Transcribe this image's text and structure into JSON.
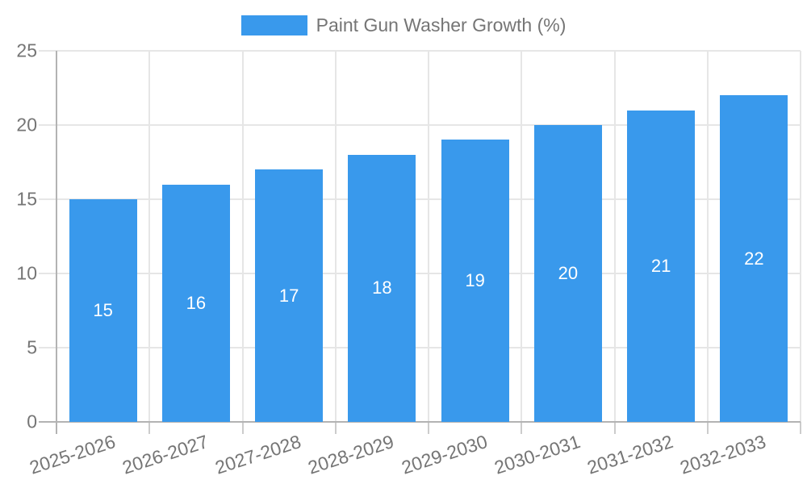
{
  "legend": {
    "label": "Paint Gun Washer Growth (%)"
  },
  "colors": {
    "bar": "#3999EC",
    "bar_label": "#ffffff",
    "text": "#757575",
    "grid": "#e6e6e6",
    "axis": "#b3b3b3",
    "tick": "#cccccc"
  },
  "chart_data": {
    "type": "bar",
    "title": "Paint Gun Washer Growth (%)",
    "categories": [
      "2025-2026",
      "2026-2027",
      "2027-2028",
      "2028-2029",
      "2029-2030",
      "2030-2031",
      "2031-2032",
      "2032-2033"
    ],
    "values": [
      15,
      16,
      17,
      18,
      19,
      20,
      21,
      22
    ],
    "xlabel": "",
    "ylabel": "",
    "ylim": [
      0,
      25
    ],
    "yticks": [
      0,
      5,
      10,
      15,
      20,
      25
    ],
    "grid": true,
    "legend_position": "top",
    "bar_labels": true,
    "xlabel_rotation_deg": -18
  }
}
